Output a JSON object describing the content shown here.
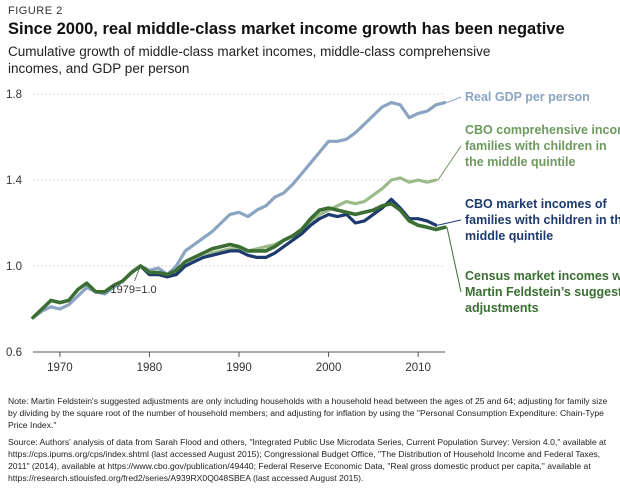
{
  "figure_label": "FIGURE 2",
  "chart_data": {
    "type": "line",
    "title": "Since 2000, real middle-class market income growth has been negative",
    "subtitle": "Cumulative growth of middle-class market incomes, middle-class comprehensive incomes, and GDP per person",
    "xlim": [
      1967,
      2013
    ],
    "ylim": [
      0.6,
      1.8
    ],
    "x_ticks": [
      1970,
      1980,
      1990,
      2000,
      2010
    ],
    "y_ticks": [
      0.6,
      1.0,
      1.4,
      1.8
    ],
    "y_tick_labels": [
      "0.6",
      "1.0",
      "1.4",
      "1.8"
    ],
    "annotation": "1979=1.0",
    "grid": "horizontal",
    "series": [
      {
        "name": "Real GDP per person",
        "color": "#8aa4c2",
        "points": [
          [
            1967,
            0.76
          ],
          [
            1968,
            0.79
          ],
          [
            1969,
            0.81
          ],
          [
            1970,
            0.8
          ],
          [
            1971,
            0.82
          ],
          [
            1972,
            0.86
          ],
          [
            1973,
            0.9
          ],
          [
            1974,
            0.88
          ],
          [
            1975,
            0.87
          ],
          [
            1976,
            0.9
          ],
          [
            1977,
            0.93
          ],
          [
            1978,
            0.97
          ],
          [
            1979,
            1.0
          ],
          [
            1980,
            0.98
          ],
          [
            1981,
            0.99
          ],
          [
            1982,
            0.96
          ],
          [
            1983,
            1.0
          ],
          [
            1984,
            1.07
          ],
          [
            1985,
            1.1
          ],
          [
            1986,
            1.13
          ],
          [
            1987,
            1.16
          ],
          [
            1988,
            1.2
          ],
          [
            1989,
            1.24
          ],
          [
            1990,
            1.25
          ],
          [
            1991,
            1.23
          ],
          [
            1992,
            1.26
          ],
          [
            1993,
            1.28
          ],
          [
            1994,
            1.32
          ],
          [
            1995,
            1.34
          ],
          [
            1996,
            1.38
          ],
          [
            1997,
            1.43
          ],
          [
            1998,
            1.48
          ],
          [
            1999,
            1.53
          ],
          [
            2000,
            1.58
          ],
          [
            2001,
            1.58
          ],
          [
            2002,
            1.59
          ],
          [
            2003,
            1.62
          ],
          [
            2004,
            1.66
          ],
          [
            2005,
            1.7
          ],
          [
            2006,
            1.74
          ],
          [
            2007,
            1.76
          ],
          [
            2008,
            1.75
          ],
          [
            2009,
            1.69
          ],
          [
            2010,
            1.71
          ],
          [
            2011,
            1.72
          ],
          [
            2012,
            1.75
          ],
          [
            2013,
            1.76
          ]
        ]
      },
      {
        "name": "CBO comprehensive incomes of families with children in the middle quintile",
        "color": "#9dbb8a",
        "points": [
          [
            1979,
            1.0
          ],
          [
            1980,
            0.97
          ],
          [
            1981,
            0.96
          ],
          [
            1982,
            0.95
          ],
          [
            1983,
            0.97
          ],
          [
            1984,
            1.0
          ],
          [
            1985,
            1.02
          ],
          [
            1986,
            1.04
          ],
          [
            1987,
            1.06
          ],
          [
            1988,
            1.07
          ],
          [
            1989,
            1.08
          ],
          [
            1990,
            1.08
          ],
          [
            1991,
            1.07
          ],
          [
            1992,
            1.08
          ],
          [
            1993,
            1.09
          ],
          [
            1994,
            1.1
          ],
          [
            1995,
            1.12
          ],
          [
            1996,
            1.14
          ],
          [
            1997,
            1.16
          ],
          [
            1998,
            1.2
          ],
          [
            1999,
            1.24
          ],
          [
            2000,
            1.26
          ],
          [
            2001,
            1.28
          ],
          [
            2002,
            1.3
          ],
          [
            2003,
            1.29
          ],
          [
            2004,
            1.3
          ],
          [
            2005,
            1.33
          ],
          [
            2006,
            1.36
          ],
          [
            2007,
            1.4
          ],
          [
            2008,
            1.41
          ],
          [
            2009,
            1.39
          ],
          [
            2010,
            1.4
          ],
          [
            2011,
            1.39
          ],
          [
            2012,
            1.4
          ]
        ]
      },
      {
        "name": "CBO market incomes of families with children in the middle quintile",
        "color": "#1e3a6e",
        "points": [
          [
            1979,
            1.0
          ],
          [
            1980,
            0.96
          ],
          [
            1981,
            0.96
          ],
          [
            1982,
            0.95
          ],
          [
            1983,
            0.96
          ],
          [
            1984,
            1.0
          ],
          [
            1985,
            1.02
          ],
          [
            1986,
            1.04
          ],
          [
            1987,
            1.05
          ],
          [
            1988,
            1.06
          ],
          [
            1989,
            1.07
          ],
          [
            1990,
            1.07
          ],
          [
            1991,
            1.05
          ],
          [
            1992,
            1.04
          ],
          [
            1993,
            1.04
          ],
          [
            1994,
            1.06
          ],
          [
            1995,
            1.09
          ],
          [
            1996,
            1.12
          ],
          [
            1997,
            1.15
          ],
          [
            1998,
            1.19
          ],
          [
            1999,
            1.22
          ],
          [
            2000,
            1.24
          ],
          [
            2001,
            1.23
          ],
          [
            2002,
            1.24
          ],
          [
            2003,
            1.2
          ],
          [
            2004,
            1.21
          ],
          [
            2005,
            1.24
          ],
          [
            2006,
            1.27
          ],
          [
            2007,
            1.31
          ],
          [
            2008,
            1.27
          ],
          [
            2009,
            1.22
          ],
          [
            2010,
            1.22
          ],
          [
            2011,
            1.21
          ],
          [
            2012,
            1.19
          ]
        ]
      },
      {
        "name": "Census market incomes with Martin Feldstein’s suggested adjustments",
        "color": "#3a6e32",
        "points": [
          [
            1967,
            0.76
          ],
          [
            1968,
            0.8
          ],
          [
            1969,
            0.84
          ],
          [
            1970,
            0.83
          ],
          [
            1971,
            0.84
          ],
          [
            1972,
            0.89
          ],
          [
            1973,
            0.92
          ],
          [
            1974,
            0.88
          ],
          [
            1975,
            0.88
          ],
          [
            1976,
            0.91
          ],
          [
            1977,
            0.93
          ],
          [
            1978,
            0.97
          ],
          [
            1979,
            1.0
          ],
          [
            1980,
            0.97
          ],
          [
            1981,
            0.97
          ],
          [
            1982,
            0.96
          ],
          [
            1983,
            0.98
          ],
          [
            1984,
            1.02
          ],
          [
            1985,
            1.04
          ],
          [
            1986,
            1.06
          ],
          [
            1987,
            1.08
          ],
          [
            1988,
            1.09
          ],
          [
            1989,
            1.1
          ],
          [
            1990,
            1.09
          ],
          [
            1991,
            1.07
          ],
          [
            1992,
            1.07
          ],
          [
            1993,
            1.07
          ],
          [
            1994,
            1.09
          ],
          [
            1995,
            1.12
          ],
          [
            1996,
            1.14
          ],
          [
            1997,
            1.17
          ],
          [
            1998,
            1.22
          ],
          [
            1999,
            1.26
          ],
          [
            2000,
            1.27
          ],
          [
            2001,
            1.26
          ],
          [
            2002,
            1.25
          ],
          [
            2003,
            1.24
          ],
          [
            2004,
            1.25
          ],
          [
            2005,
            1.26
          ],
          [
            2006,
            1.28
          ],
          [
            2007,
            1.29
          ],
          [
            2008,
            1.26
          ],
          [
            2009,
            1.21
          ],
          [
            2010,
            1.19
          ],
          [
            2011,
            1.18
          ],
          [
            2012,
            1.17
          ],
          [
            2013,
            1.18
          ]
        ]
      }
    ],
    "labels": [
      {
        "lines": [
          "Real GDP per person"
        ],
        "color": "#8aa4c2",
        "bold": false
      },
      {
        "lines": [
          "CBO comprehensive incomes of",
          "families with children in",
          "the middle quintile"
        ],
        "color": "#6e9a5e",
        "bold": false
      },
      {
        "lines": [
          "CBO market incomes of",
          "families with children in the",
          "middle quintile"
        ],
        "color": "#1e3a6e",
        "bold": false
      },
      {
        "lines": [
          "Census market incomes with",
          "Martin Feldstein’s suggested",
          "adjustments"
        ],
        "color": "#3a6e32",
        "bold": false
      }
    ]
  },
  "footnotes": {
    "note": "Note: Martin Feldstein's suggested adjustments are only including households with a household head between the ages of 25 and 64; adjusting for family size by dividing by the square root of the number of household members; and adjusting for inflation by using the \"Personal Consumption Expenditure: Chain-Type Price Index.\"",
    "source": "Source: Authors' analysis of data from Sarah Flood and others, \"Integrated Public Use Microdata Series, Current Population Survey: Version 4.0,\" available at https://cps.ipums.org/cps/index.shtml (last accessed August 2015); Congressional Budget Office, \"The Distribution of Household Income and Federal Taxes, 2011\" (2014), available at https://www.cbo.gov/publication/49440; Federal Reserve Economic Data, \"Real gross domestic product per capita,\" available at https://research.stlouisfed.org/fred2/series/A939RX0Q048SBEA (last accessed August 2015)."
  }
}
